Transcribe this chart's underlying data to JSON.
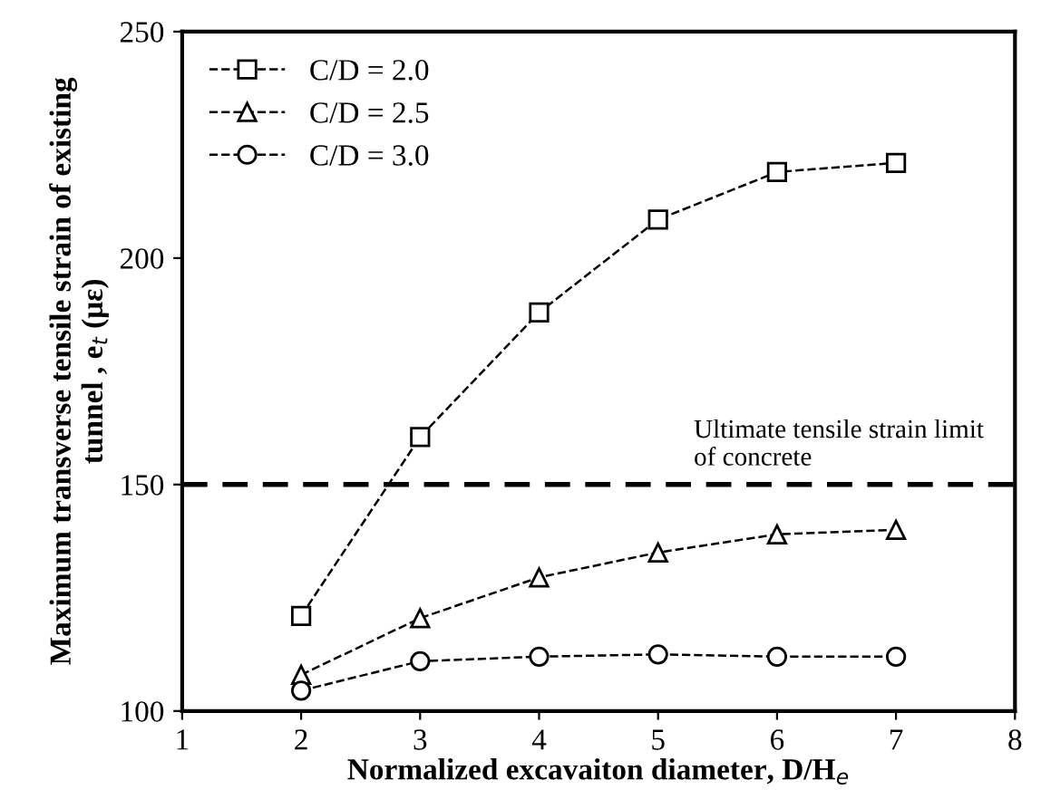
{
  "chart_data": {
    "type": "line",
    "xlabel": "Normalized excavaiton diameter, D/H$_{e}$",
    "ylabel": "Maximum transverse tensile strain of existing\ntunnel , e$_{t}$ (με)",
    "x": [
      2,
      3,
      4,
      5,
      6,
      7
    ],
    "series": [
      {
        "name": "C/D = 2.0",
        "color": "#000000",
        "marker": "square",
        "values": [
          121,
          160.5,
          188,
          208.5,
          219,
          221
        ]
      },
      {
        "name": "C/D = 2.5",
        "color": "#000000",
        "marker": "triangle",
        "values": [
          108,
          120.5,
          129.5,
          135,
          139,
          140
        ]
      },
      {
        "name": "C/D = 3.0",
        "color": "#000000",
        "marker": "circle",
        "values": [
          104.5,
          111,
          112,
          112.5,
          112,
          112
        ]
      }
    ],
    "line_style": "dashed",
    "xlim": [
      1,
      8
    ],
    "xticks": [
      1,
      2,
      3,
      4,
      5,
      6,
      7,
      8
    ],
    "ylim": [
      100,
      250
    ],
    "yticks": [
      100,
      150,
      200,
      250
    ],
    "ref_lines": [
      {
        "axis": "y",
        "value": 150,
        "label": "Ultimate tensile strain limit\nof concrete",
        "color": "#000000",
        "line_style": "dashed"
      }
    ],
    "grid": false,
    "legend": "top left"
  }
}
